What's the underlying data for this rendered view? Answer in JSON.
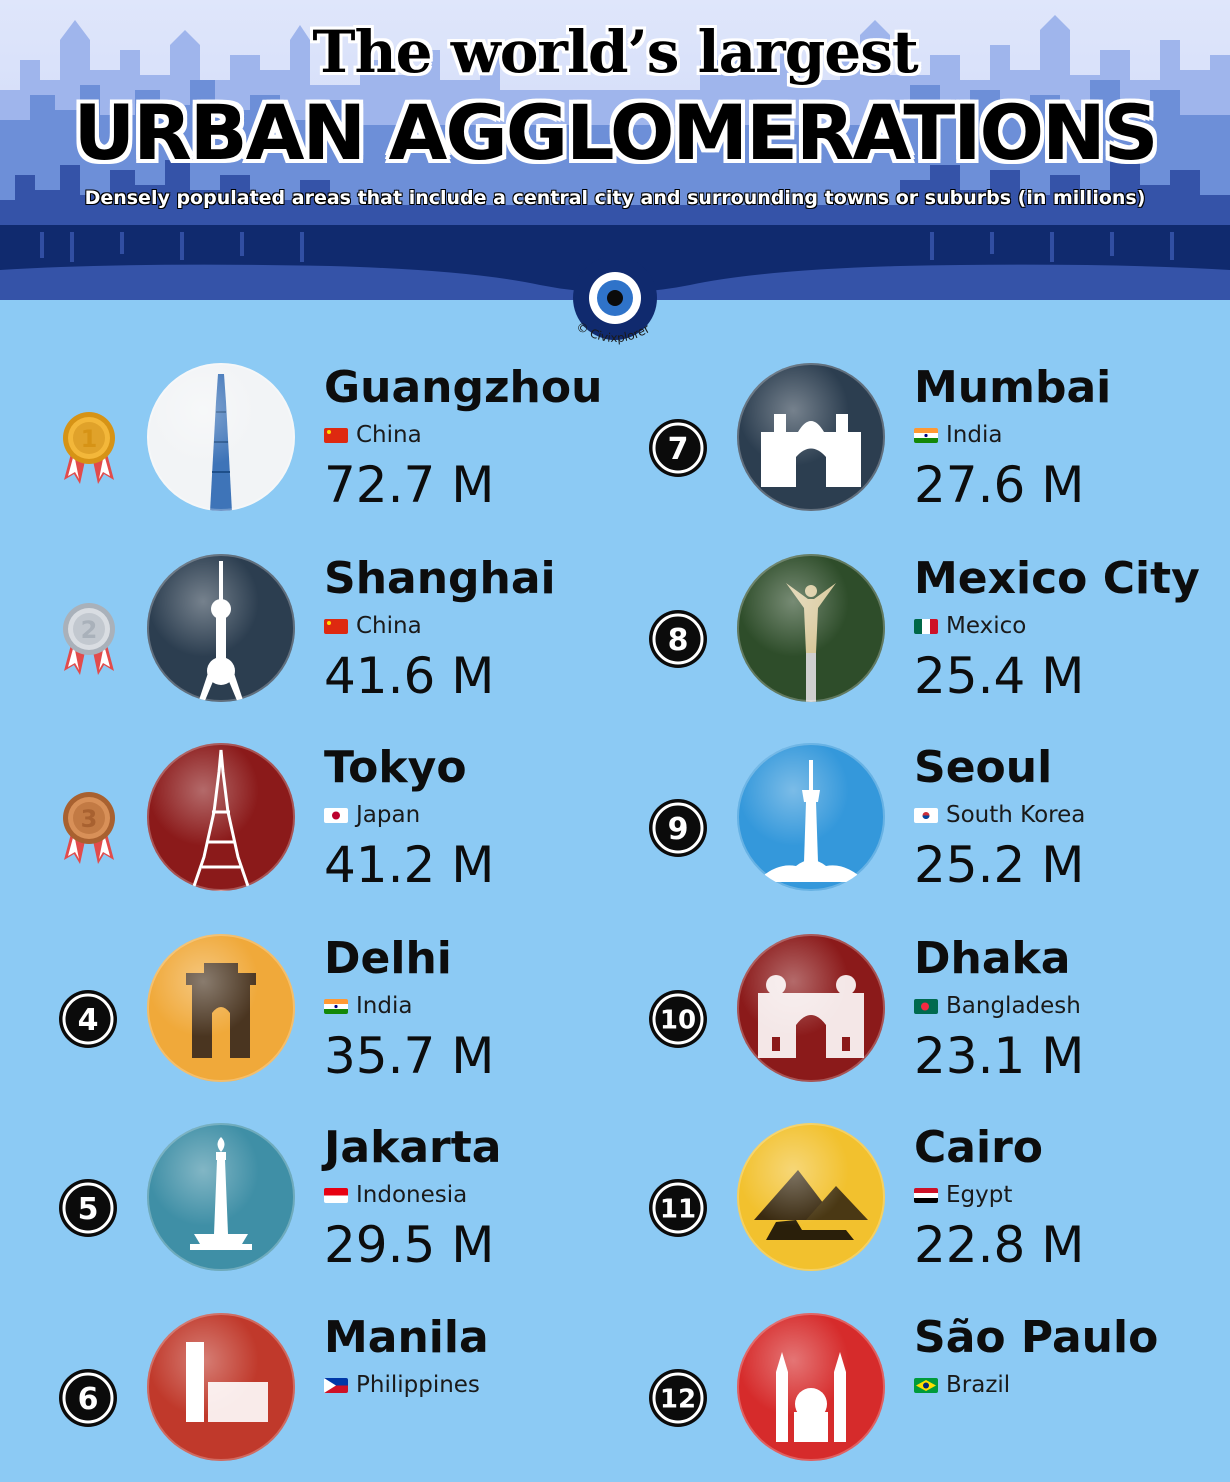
{
  "header": {
    "title_line1": "The world’s largest",
    "title_line2": "URBAN AGGLOMERATIONS",
    "subtitle": "Densely populated areas that include a central city and surrounding towns or suburbs (in millions)",
    "watermark": "© Civixplorer"
  },
  "colors": {
    "background": "#8ccaf4",
    "skyline_dark": "#102a6e",
    "skyline_light": "#6d8fd8"
  },
  "cities": [
    {
      "rank": 1,
      "rank_label": "1",
      "badge": "gold-medal",
      "name": "Guangzhou",
      "country": "China",
      "flag": "china-flag",
      "population": "72.7 M",
      "circle_color": "#f2f4f6",
      "landmark": "canton-tower-icon"
    },
    {
      "rank": 2,
      "rank_label": "2",
      "badge": "silver-medal",
      "name": "Shanghai",
      "country": "China",
      "flag": "china-flag",
      "population": "41.6 M",
      "circle_color": "#2c3e50",
      "landmark": "oriental-pearl-tower-icon"
    },
    {
      "rank": 3,
      "rank_label": "3",
      "badge": "bronze-medal",
      "name": "Tokyo",
      "country": "Japan",
      "flag": "japan-flag",
      "population": "41.2 M",
      "circle_color": "#8b1a1a",
      "landmark": "tokyo-tower-icon"
    },
    {
      "rank": 4,
      "rank_label": "4",
      "badge": "number",
      "name": "Delhi",
      "country": "India",
      "flag": "india-flag",
      "population": "35.7 M",
      "circle_color": "#f0a93a",
      "landmark": "india-gate-icon"
    },
    {
      "rank": 5,
      "rank_label": "5",
      "badge": "number",
      "name": "Jakarta",
      "country": "Indonesia",
      "flag": "indonesia-flag",
      "population": "29.5 M",
      "circle_color": "#3f8fa6",
      "landmark": "monas-tower-icon"
    },
    {
      "rank": 6,
      "rank_label": "6",
      "badge": "number",
      "name": "Manila",
      "country": "Philippines",
      "flag": "philippines-flag",
      "population": "",
      "circle_color": "#c0392b",
      "landmark": "manila-cathedral-icon"
    },
    {
      "rank": 7,
      "rank_label": "7",
      "badge": "number",
      "name": "Mumbai",
      "country": "India",
      "flag": "india-flag",
      "population": "27.6 M",
      "circle_color": "#2c3e50",
      "landmark": "gateway-of-india-icon"
    },
    {
      "rank": 8,
      "rank_label": "8",
      "badge": "number",
      "name": "Mexico City",
      "country": "Mexico",
      "flag": "mexico-flag",
      "population": "25.4 M",
      "circle_color": "#2e4d2a",
      "landmark": "angel-of-independence-icon"
    },
    {
      "rank": 9,
      "rank_label": "9",
      "badge": "number",
      "name": "Seoul",
      "country": "South Korea",
      "flag": "south-korea-flag",
      "population": "25.2 M",
      "circle_color": "#3498db",
      "landmark": "namsan-tower-icon"
    },
    {
      "rank": 10,
      "rank_label": "10",
      "badge": "number",
      "name": "Dhaka",
      "country": "Bangladesh",
      "flag": "bangladesh-flag",
      "population": "23.1 M",
      "circle_color": "#8b1a1a",
      "landmark": "mosque-icon"
    },
    {
      "rank": 11,
      "rank_label": "11",
      "badge": "number",
      "name": "Cairo",
      "country": "Egypt",
      "flag": "egypt-flag",
      "population": "22.8 M",
      "circle_color": "#f2c12e",
      "landmark": "pyramids-sphinx-icon"
    },
    {
      "rank": 12,
      "rank_label": "12",
      "badge": "number",
      "name": "São Paulo",
      "country": "Brazil",
      "flag": "brazil-flag",
      "population": "",
      "circle_color": "#d62b2b",
      "landmark": "se-cathedral-icon"
    }
  ]
}
